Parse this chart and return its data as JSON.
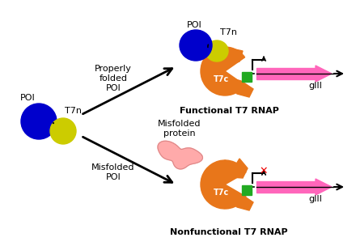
{
  "background_color": "#ffffff",
  "blue_color": "#0000cc",
  "yellow_color": "#cccc00",
  "orange_color": "#e8761a",
  "orange_dark_color": "#cc6600",
  "green_color": "#22aa22",
  "pink_color": "#ff66bb",
  "red_color": "#ee0000",
  "misfolded_color": "#ffaaaa",
  "text_color": "#000000",
  "label_poi_left": "POI",
  "label_t7n_left": "T7n",
  "label_properly_folded": "Properly\nfolded\nPOI",
  "label_misfolded_poi": "Misfolded\nPOI",
  "label_misfolded_protein": "Misfolded\nprotein",
  "label_functional": "Functional T7 RNAP",
  "label_nonfunctional": "Nonfunctional T7 RNAP",
  "label_gIII_top": "gIII",
  "label_gIII_bot": "gIII",
  "label_t7c": "T7c",
  "label_poi_top": "POI",
  "label_t7n_top": "T7n"
}
